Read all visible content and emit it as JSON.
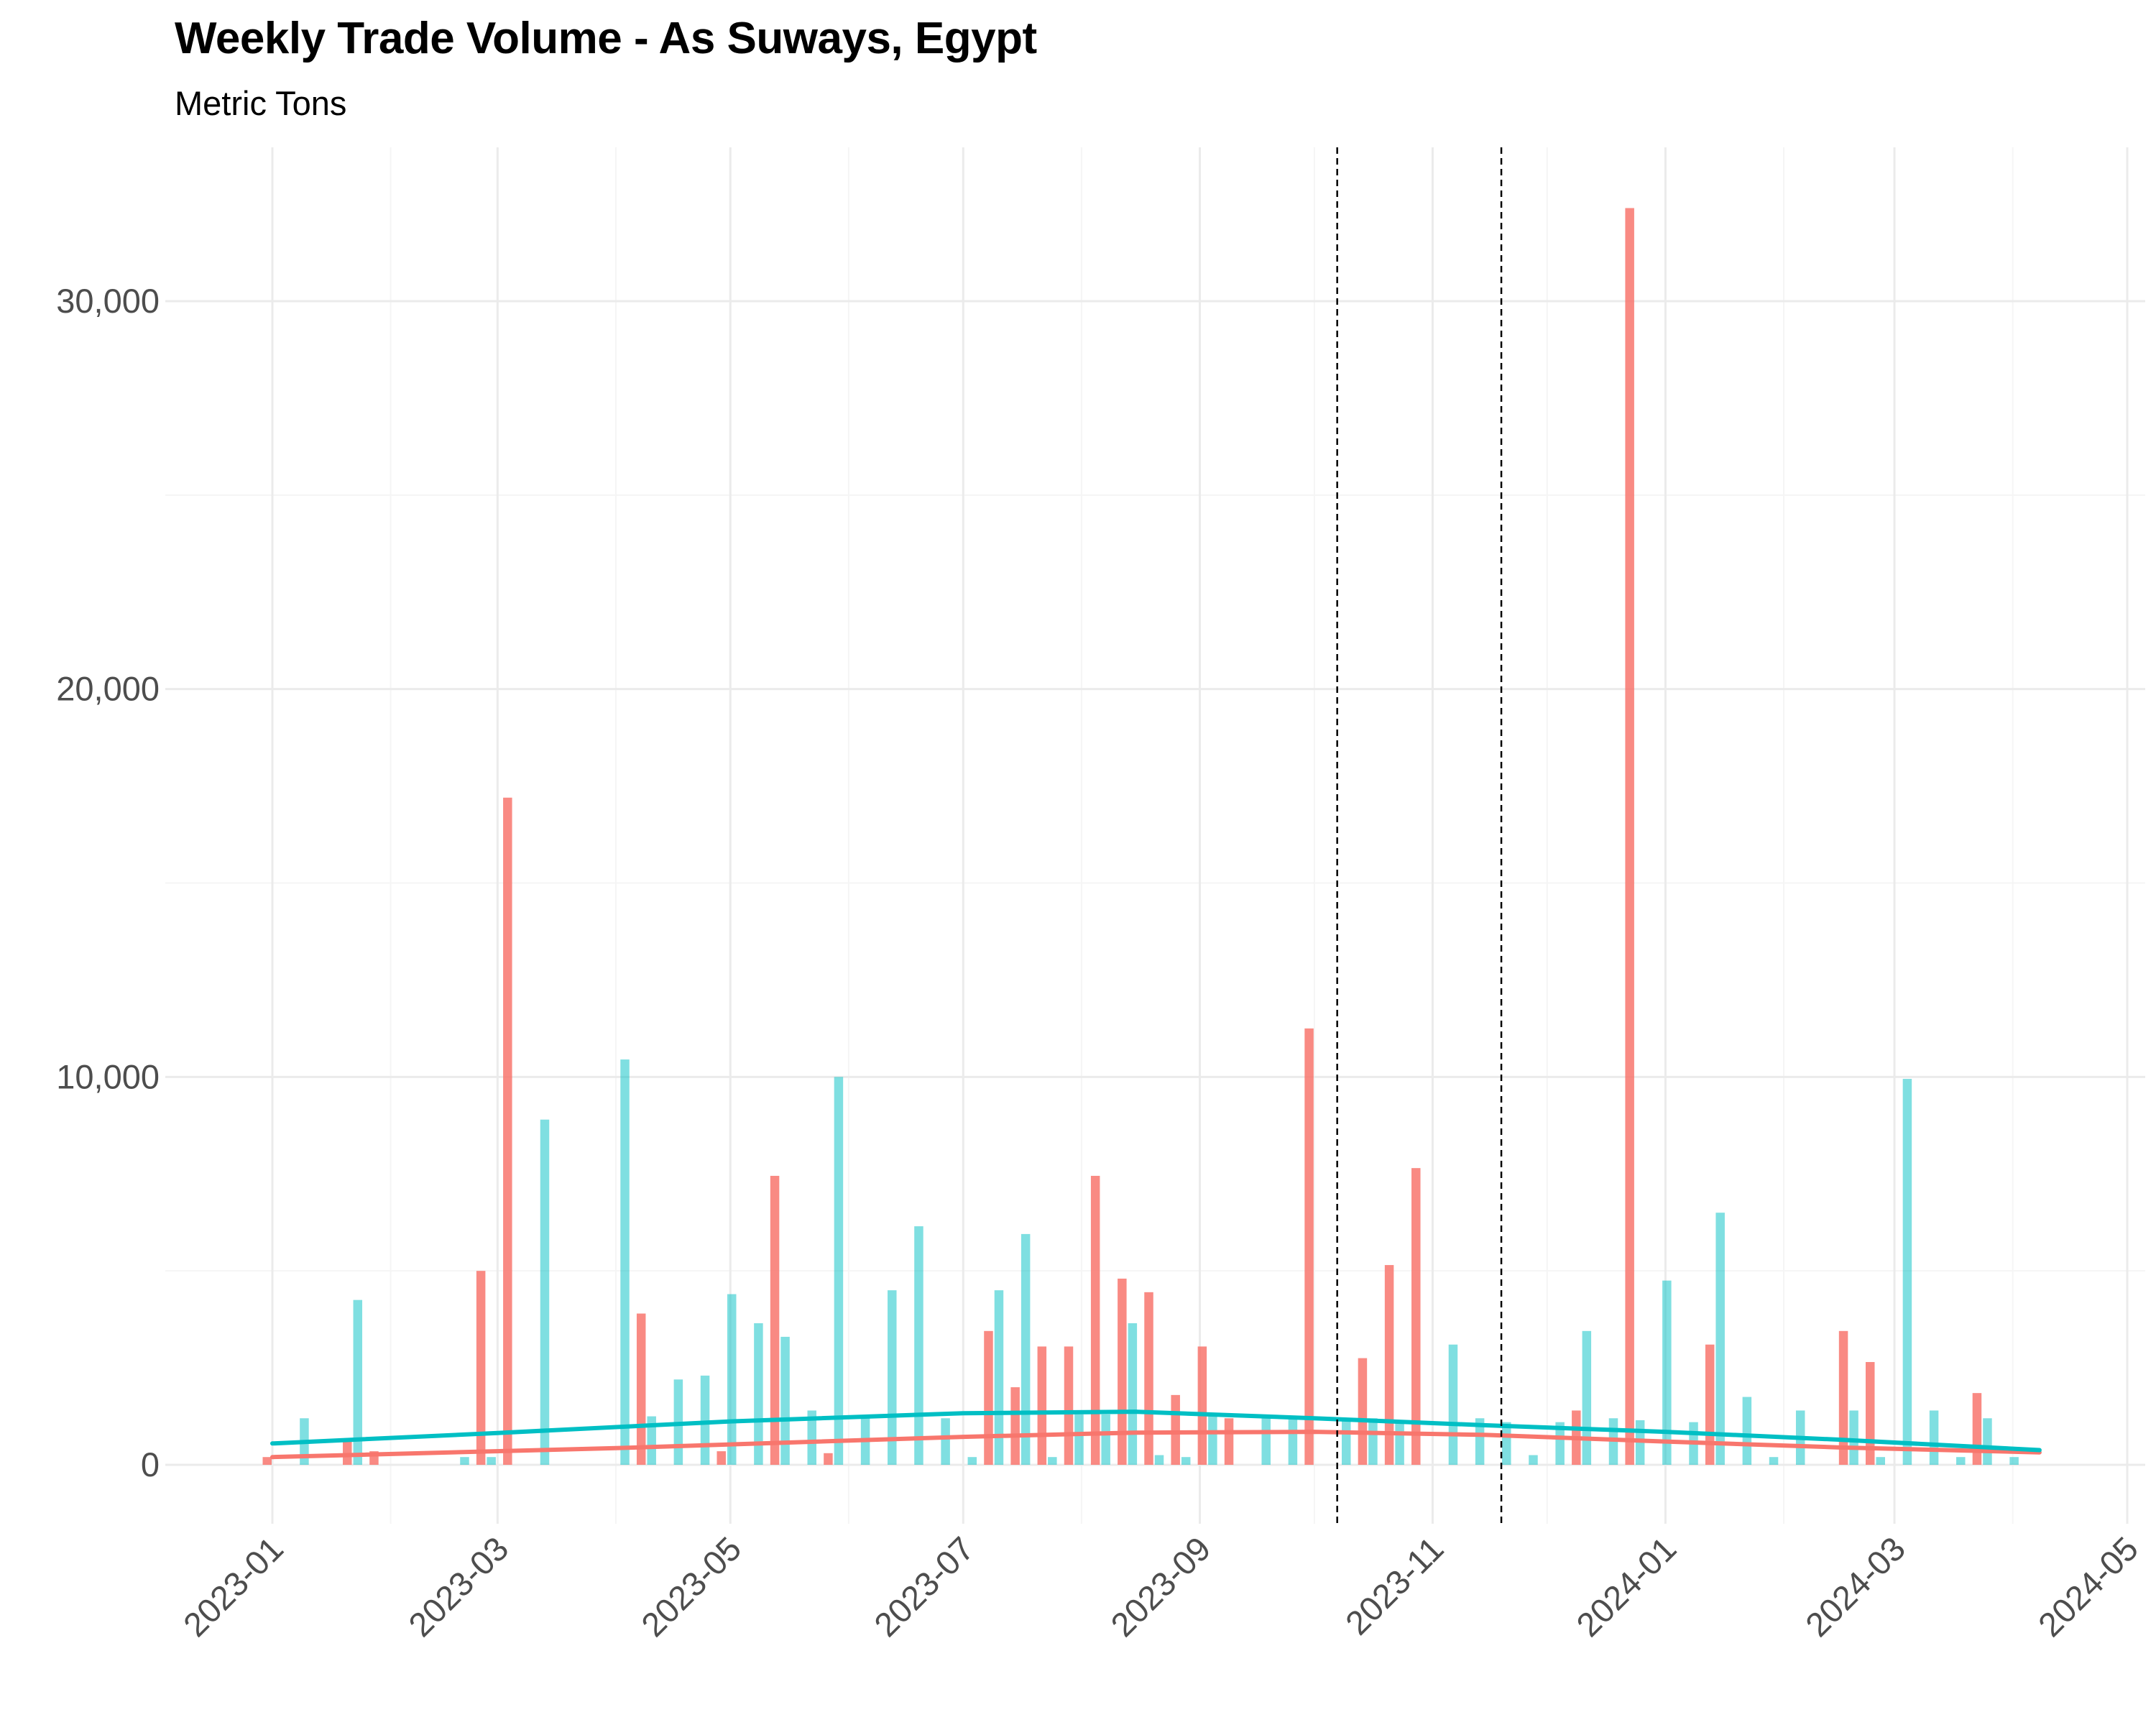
{
  "chart_data": {
    "type": "bar",
    "title": "Weekly Trade Volume - As Suways, Egypt",
    "subtitle": "Metric Tons",
    "xlabel": "",
    "ylabel": "",
    "x_axis_type": "date",
    "xlim": [
      "2023-01-01",
      "2024-05-01"
    ],
    "ylim": [
      -1500,
      33000
    ],
    "x_ticks": [
      "2023-01",
      "2023-03",
      "2023-05",
      "2023-07",
      "2023-09",
      "2023-11",
      "2024-01",
      "2024-03",
      "2024-05"
    ],
    "y_ticks": [
      0,
      10000,
      20000,
      30000
    ],
    "y_tick_labels": [
      "0",
      "10,000",
      "20,000",
      "30,000"
    ],
    "grid": true,
    "legend": "none",
    "colors": {
      "series_red": "#F8766D",
      "series_teal": "#00BFC4",
      "vline": "#000000",
      "grid": "#ebebeb"
    },
    "reference_lines": [
      {
        "orientation": "vertical",
        "x": "2023-10-07",
        "style": "dashed"
      },
      {
        "orientation": "vertical",
        "x": "2023-11-19",
        "style": "dashed"
      }
    ],
    "series": [
      {
        "color": "#F8766D",
        "points": [
          [
            "2023-01-01",
            200
          ],
          [
            "2023-01-22",
            600
          ],
          [
            "2023-01-29",
            350
          ],
          [
            "2023-02-26",
            5000
          ],
          [
            "2023-03-05",
            17200
          ],
          [
            "2023-04-09",
            3900
          ],
          [
            "2023-04-30",
            350
          ],
          [
            "2023-05-14",
            7450
          ],
          [
            "2023-05-28",
            300
          ],
          [
            "2023-07-09",
            3450
          ],
          [
            "2023-07-16",
            2000
          ],
          [
            "2023-07-23",
            3050
          ],
          [
            "2023-07-30",
            3050
          ],
          [
            "2023-08-06",
            7450
          ],
          [
            "2023-08-13",
            4800
          ],
          [
            "2023-08-20",
            4450
          ],
          [
            "2023-08-27",
            1800
          ],
          [
            "2023-09-03",
            3050
          ],
          [
            "2023-09-10",
            1200
          ],
          [
            "2023-10-01",
            11250
          ],
          [
            "2023-10-15",
            2750
          ],
          [
            "2023-10-22",
            5150
          ],
          [
            "2023-10-29",
            7650
          ],
          [
            "2023-12-10",
            1400
          ],
          [
            "2023-12-24",
            32400
          ],
          [
            "2024-01-14",
            3100
          ],
          [
            "2024-02-18",
            3450
          ],
          [
            "2024-02-25",
            2650
          ],
          [
            "2024-03-24",
            1850
          ]
        ],
        "trend": [
          [
            "2023-01-01",
            200
          ],
          [
            "2023-04-01",
            430
          ],
          [
            "2023-07-01",
            720
          ],
          [
            "2023-08-15",
            830
          ],
          [
            "2023-10-01",
            850
          ],
          [
            "2023-11-15",
            770
          ],
          [
            "2024-01-01",
            600
          ],
          [
            "2024-02-15",
            450
          ],
          [
            "2024-04-08",
            320
          ]
        ]
      },
      {
        "color": "#00BFC4",
        "points": [
          [
            "2023-01-08",
            1200
          ],
          [
            "2023-01-22",
            4250
          ],
          [
            "2023-02-19",
            200
          ],
          [
            "2023-02-26",
            200
          ],
          [
            "2023-03-12",
            8900
          ],
          [
            "2023-04-02",
            10450
          ],
          [
            "2023-04-09",
            1250
          ],
          [
            "2023-04-16",
            2200
          ],
          [
            "2023-04-23",
            2300
          ],
          [
            "2023-04-30",
            4400
          ],
          [
            "2023-05-07",
            3650
          ],
          [
            "2023-05-14",
            3300
          ],
          [
            "2023-05-21",
            1400
          ],
          [
            "2023-05-28",
            10000
          ],
          [
            "2023-06-04",
            1250
          ],
          [
            "2023-06-11",
            4500
          ],
          [
            "2023-06-18",
            6150
          ],
          [
            "2023-06-25",
            1200
          ],
          [
            "2023-07-02",
            200
          ],
          [
            "2023-07-09",
            4500
          ],
          [
            "2023-07-16",
            5950
          ],
          [
            "2023-07-23",
            200
          ],
          [
            "2023-07-30",
            1300
          ],
          [
            "2023-08-06",
            1300
          ],
          [
            "2023-08-13",
            3650
          ],
          [
            "2023-08-20",
            250
          ],
          [
            "2023-08-27",
            200
          ],
          [
            "2023-09-03",
            1250
          ],
          [
            "2023-09-17",
            1200
          ],
          [
            "2023-09-24",
            1200
          ],
          [
            "2023-10-08",
            1200
          ],
          [
            "2023-10-15",
            1200
          ],
          [
            "2023-10-22",
            1150
          ],
          [
            "2023-11-05",
            3100
          ],
          [
            "2023-11-12",
            1200
          ],
          [
            "2023-11-19",
            1100
          ],
          [
            "2023-11-26",
            250
          ],
          [
            "2023-12-03",
            1100
          ],
          [
            "2023-12-10",
            3450
          ],
          [
            "2023-12-17",
            1200
          ],
          [
            "2023-12-24",
            1150
          ],
          [
            "2023-12-31",
            4750
          ],
          [
            "2024-01-07",
            1100
          ],
          [
            "2024-01-14",
            6500
          ],
          [
            "2024-01-21",
            1750
          ],
          [
            "2024-01-28",
            200
          ],
          [
            "2024-02-04",
            1400
          ],
          [
            "2024-02-18",
            1400
          ],
          [
            "2024-02-25",
            200
          ],
          [
            "2024-03-03",
            9950
          ],
          [
            "2024-03-10",
            1400
          ],
          [
            "2024-03-17",
            200
          ],
          [
            "2024-03-24",
            1200
          ],
          [
            "2024-03-31",
            200
          ]
        ],
        "trend": [
          [
            "2023-01-01",
            550
          ],
          [
            "2023-03-01",
            820
          ],
          [
            "2023-05-01",
            1120
          ],
          [
            "2023-07-01",
            1330
          ],
          [
            "2023-08-15",
            1370
          ],
          [
            "2023-10-01",
            1200
          ],
          [
            "2023-11-15",
            1020
          ],
          [
            "2024-01-01",
            850
          ],
          [
            "2024-02-15",
            650
          ],
          [
            "2024-04-08",
            380
          ]
        ]
      }
    ]
  }
}
